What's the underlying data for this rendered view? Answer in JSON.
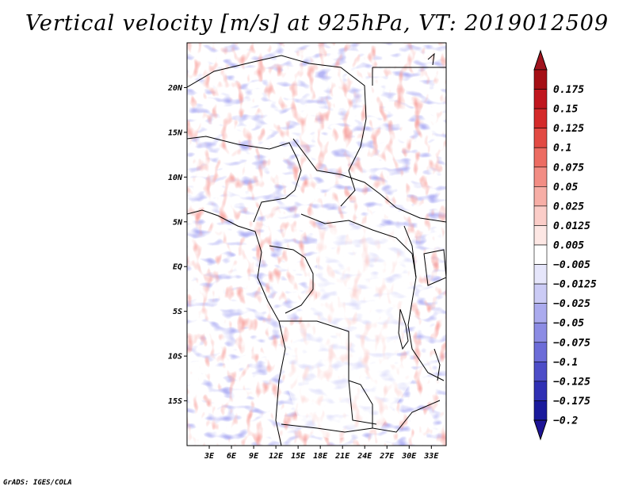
{
  "title": "Vertical velocity [m/s] at 925hPa, VT: 2019012509",
  "credit": "GrADS: IGES/COLA",
  "map": {
    "lon_range": [
      0,
      35
    ],
    "lat_range": [
      -20,
      25
    ],
    "lat_ticks": [
      {
        "lat": 20,
        "label": "20N"
      },
      {
        "lat": 15,
        "label": "15N"
      },
      {
        "lat": 10,
        "label": "10N"
      },
      {
        "lat": 5,
        "label": "5N"
      },
      {
        "lat": 0,
        "label": "EQ"
      },
      {
        "lat": -5,
        "label": "5S"
      },
      {
        "lat": -10,
        "label": "10S"
      },
      {
        "lat": -15,
        "label": "15S"
      }
    ],
    "lon_ticks": [
      {
        "lon": 3,
        "label": "3E"
      },
      {
        "lon": 6,
        "label": "6E"
      },
      {
        "lon": 9,
        "label": "9E"
      },
      {
        "lon": 12,
        "label": "12E"
      },
      {
        "lon": 15,
        "label": "15E"
      },
      {
        "lon": 18,
        "label": "18E"
      },
      {
        "lon": 21,
        "label": "21E"
      },
      {
        "lon": 24,
        "label": "24E"
      },
      {
        "lon": 27,
        "label": "27E"
      },
      {
        "lon": 30,
        "label": "30E"
      },
      {
        "lon": 33,
        "label": "33E"
      }
    ]
  },
  "colorbar": {
    "levels": [
      {
        "label": "0.175",
        "color": "#a50f15"
      },
      {
        "label": "0.15",
        "color": "#c0161e"
      },
      {
        "label": "0.125",
        "color": "#d42a2a"
      },
      {
        "label": "0.1",
        "color": "#e24a43"
      },
      {
        "label": "0.075",
        "color": "#ec6c62"
      },
      {
        "label": "0.05",
        "color": "#f28d84"
      },
      {
        "label": "0.025",
        "color": "#f7aea6"
      },
      {
        "label": "0.0125",
        "color": "#fbcdc8"
      },
      {
        "label": "0.005",
        "color": "#fde7e4"
      },
      {
        "label": "−0.005",
        "color": "#ffffff"
      },
      {
        "label": "−0.0125",
        "color": "#e6e6fb"
      },
      {
        "label": "−0.025",
        "color": "#cbcbf5"
      },
      {
        "label": "−0.05",
        "color": "#ababee"
      },
      {
        "label": "−0.075",
        "color": "#8c8ce4"
      },
      {
        "label": "−0.1",
        "color": "#6c6cd8"
      },
      {
        "label": "−0.125",
        "color": "#4d4dc8"
      },
      {
        "label": "−0.175",
        "color": "#3030b4"
      },
      {
        "label": "−0.2",
        "color": "#1a1a9c"
      }
    ],
    "top_color": "#a0141e",
    "bottom_color": "#1e1496"
  }
}
